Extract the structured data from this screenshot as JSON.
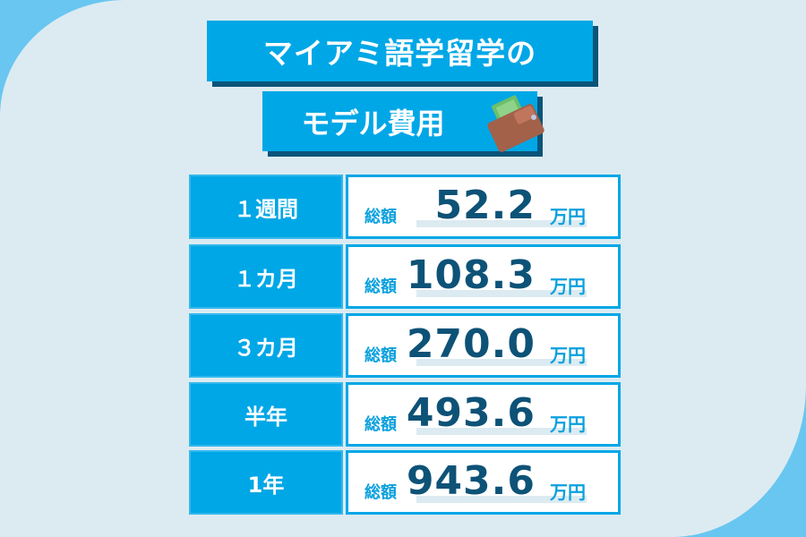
{
  "title": {
    "line1": "マイアミ語学留学の",
    "line2": "モデル費用"
  },
  "icons": {
    "wallet": "wallet-icon"
  },
  "colors": {
    "accent": "#00a7e6",
    "navy": "#0d5277",
    "shadow": "#0b5479",
    "background": "#dcebf1",
    "corner": "#69c6f0"
  },
  "rows": [
    {
      "period": "１週間",
      "total_label": "総額",
      "amount": "52.2",
      "unit": "万円"
    },
    {
      "period": "１カ月",
      "total_label": "総額",
      "amount": "108.3",
      "unit": "万円"
    },
    {
      "period": "３カ月",
      "total_label": "総額",
      "amount": "270.0",
      "unit": "万円"
    },
    {
      "period": "半年",
      "total_label": "総額",
      "amount": "493.6",
      "unit": "万円"
    },
    {
      "period": "1年",
      "total_label": "総額",
      "amount": "943.6",
      "unit": "万円"
    }
  ]
}
